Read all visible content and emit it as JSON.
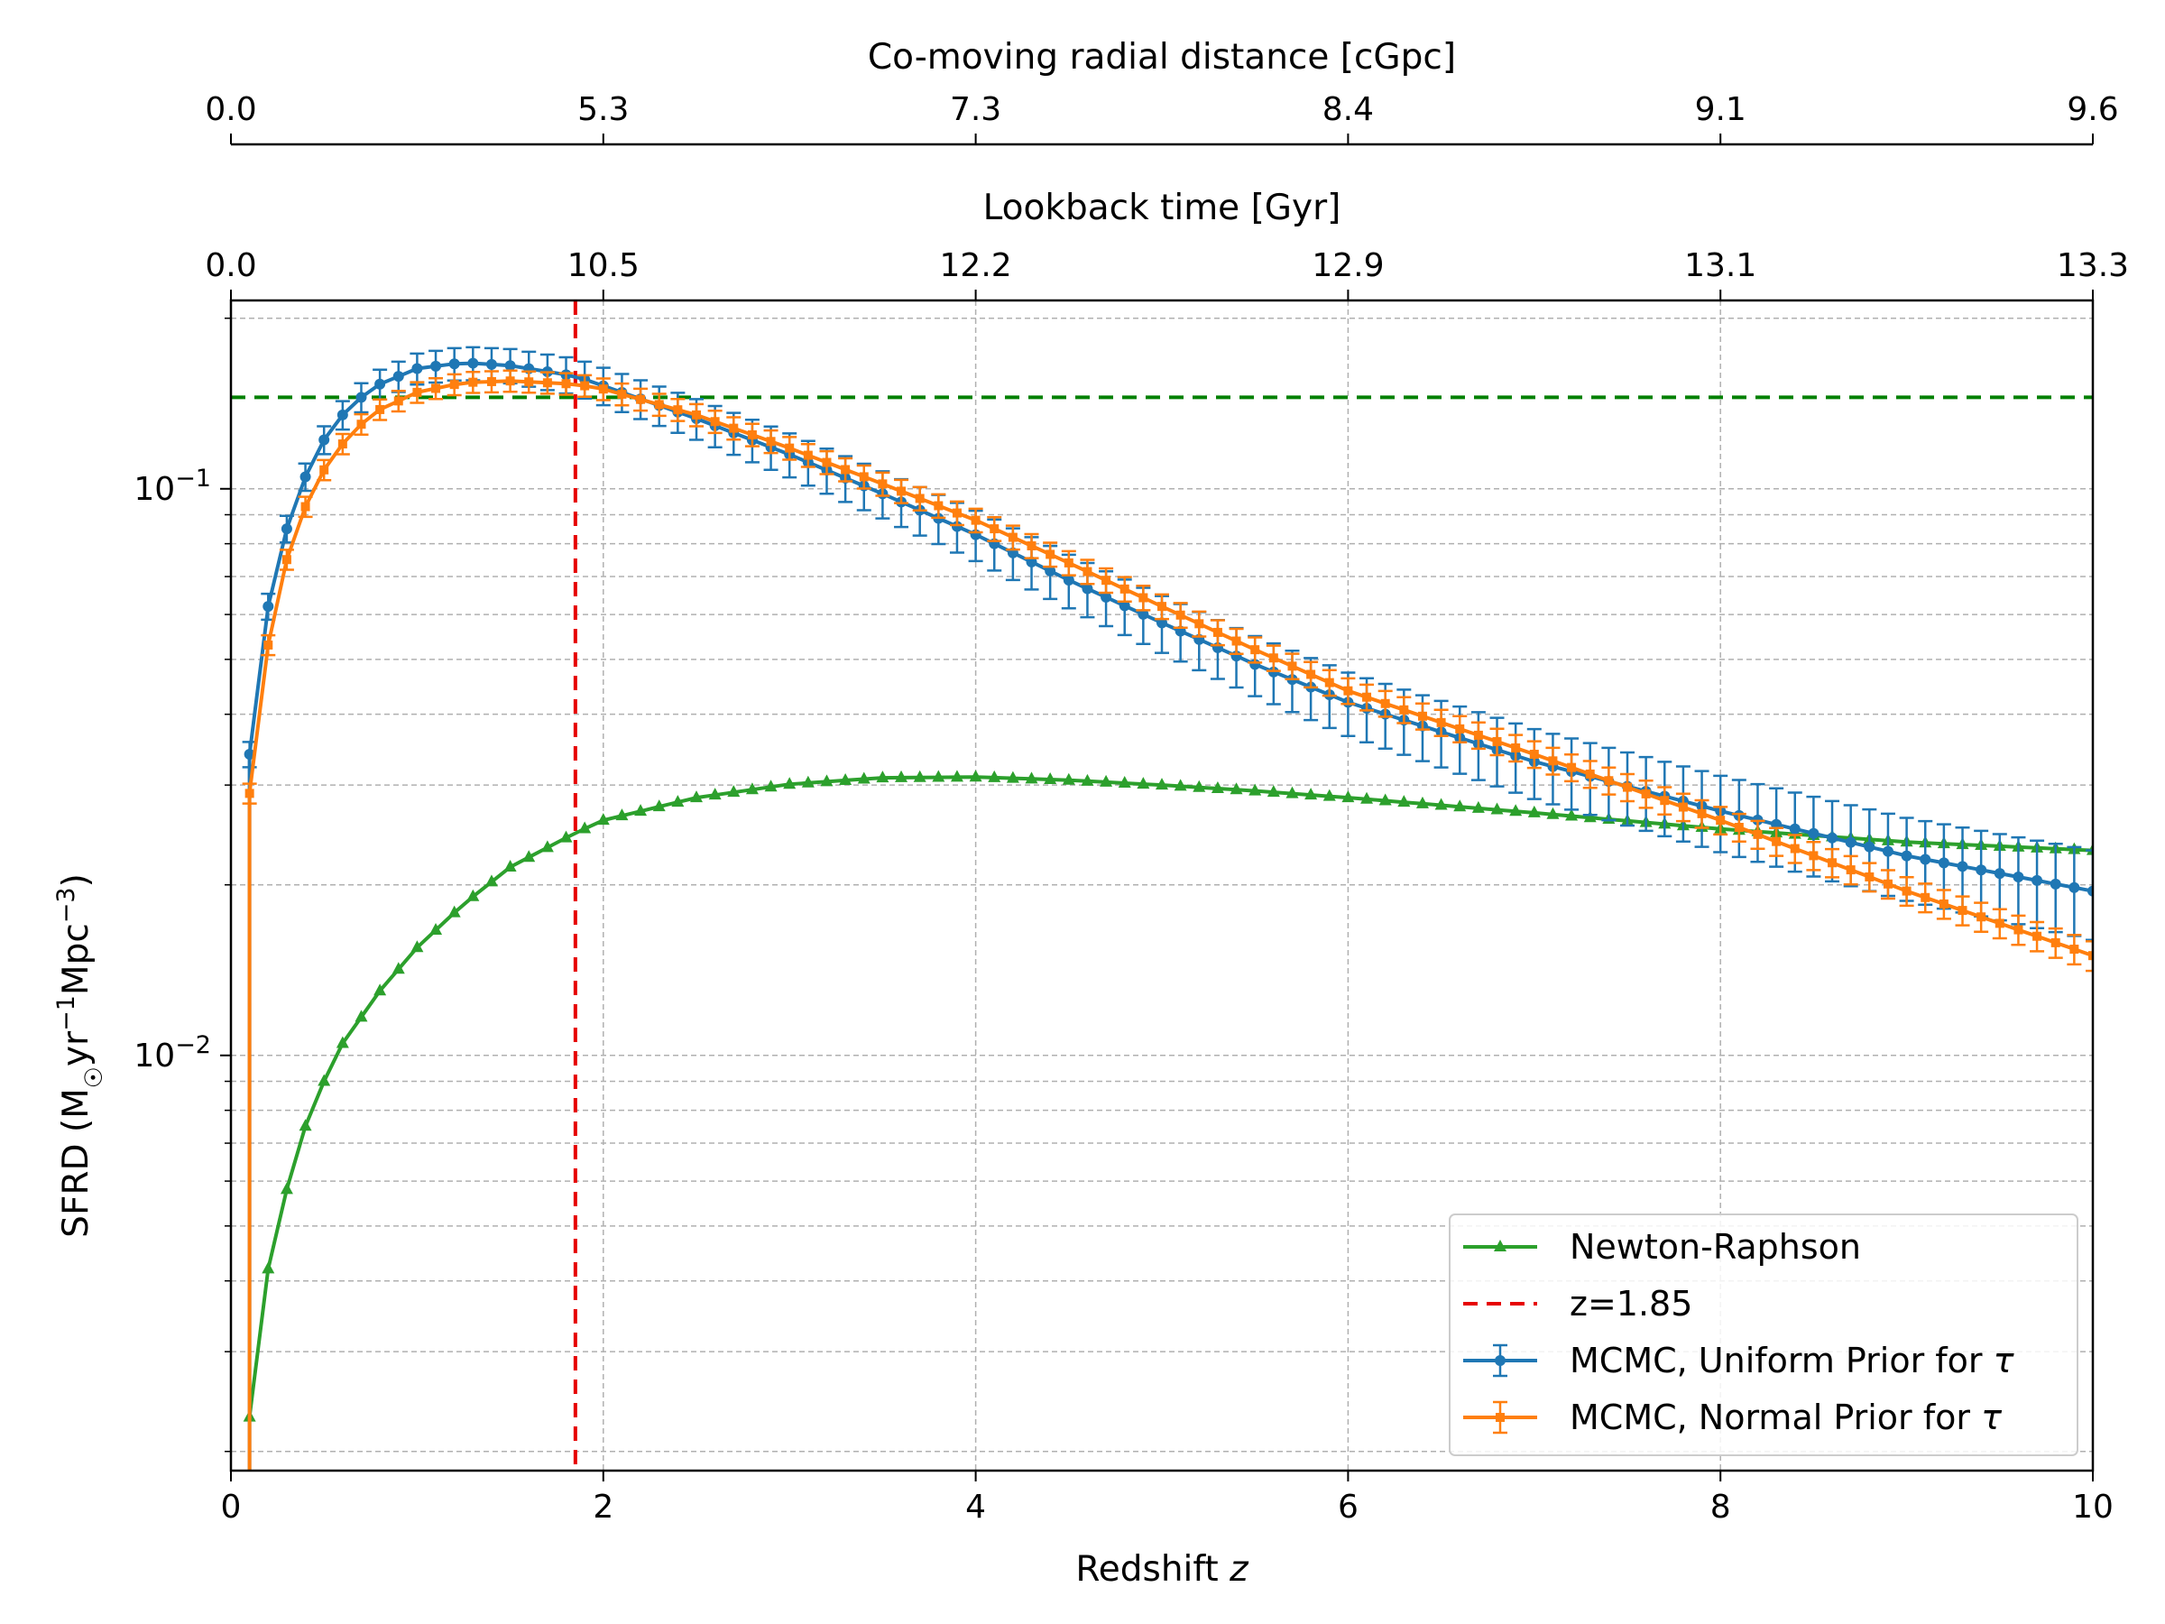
{
  "chart_data": {
    "type": "line",
    "xlabel": "Redshift z",
    "xlabel_main": "Redshift ",
    "xlabel_var": "z",
    "ylabel": "SFRD (M☉yr⁻¹Mpc⁻³)",
    "xlim": [
      0,
      10
    ],
    "ylim": [
      0.00185,
      0.215
    ],
    "yscale": "log",
    "grid": true,
    "legend_position": "lower-right",
    "x_ticks": [
      "0",
      "2",
      "4",
      "6",
      "8",
      "10"
    ],
    "y_ticks": [
      {
        "base": "10",
        "exp": "−1",
        "value": 0.1
      },
      {
        "base": "10",
        "exp": "−2",
        "value": 0.01
      }
    ],
    "top_axes": [
      {
        "label": "Lookback time [Gyr]",
        "ticks": [
          {
            "z": 0,
            "label": "0.0"
          },
          {
            "z": 2,
            "label": "10.5"
          },
          {
            "z": 4,
            "label": "12.2"
          },
          {
            "z": 6,
            "label": "12.9"
          },
          {
            "z": 8,
            "label": "13.1"
          },
          {
            "z": 10,
            "label": "13.3"
          }
        ]
      },
      {
        "label": "Co-moving radial distance [cGpc]",
        "ticks": [
          {
            "z": 0,
            "label": "0.0"
          },
          {
            "z": 2,
            "label": "5.3"
          },
          {
            "z": 4,
            "label": "7.3"
          },
          {
            "z": 6,
            "label": "8.4"
          },
          {
            "z": 8,
            "label": "9.1"
          },
          {
            "z": 10,
            "label": "9.6"
          }
        ]
      }
    ],
    "reference_lines": [
      {
        "orientation": "horizontal",
        "y": 0.145,
        "color": "#008000",
        "style": "dashed"
      },
      {
        "orientation": "vertical",
        "x": 1.85,
        "color": "#e60000",
        "style": "dashed",
        "name": "z=1.85"
      }
    ],
    "series": [
      {
        "name": "Newton-Raphson",
        "color": "#2ca02c",
        "marker": "triangle",
        "x_start": 0.1,
        "x_step": 0.1,
        "keypoints": [
          [
            0.1,
            0.0023
          ],
          [
            0.2,
            0.0042
          ],
          [
            0.3,
            0.0058
          ],
          [
            0.4,
            0.0075
          ],
          [
            0.5,
            0.009
          ],
          [
            0.6,
            0.0105
          ],
          [
            0.8,
            0.013
          ],
          [
            1.0,
            0.0155
          ],
          [
            1.25,
            0.0185
          ],
          [
            1.5,
            0.0215
          ],
          [
            1.85,
            0.0247
          ],
          [
            2.0,
            0.026
          ],
          [
            2.5,
            0.0285
          ],
          [
            3.0,
            0.0301
          ],
          [
            3.5,
            0.0309
          ],
          [
            4.0,
            0.031
          ],
          [
            4.5,
            0.0306
          ],
          [
            5.0,
            0.03
          ],
          [
            5.5,
            0.0293
          ],
          [
            6.0,
            0.0285
          ],
          [
            7.0,
            0.0268
          ],
          [
            8.0,
            0.0251
          ],
          [
            9.0,
            0.0238
          ],
          [
            10.0,
            0.023
          ]
        ]
      },
      {
        "name": "MCMC, Uniform Prior for τ",
        "color": "#1f77b4",
        "marker": "circle",
        "x_start": 0.1,
        "x_step": 0.1,
        "keypoints": [
          [
            0.1,
            0.034
          ],
          [
            0.2,
            0.062
          ],
          [
            0.3,
            0.085
          ],
          [
            0.4,
            0.105
          ],
          [
            0.5,
            0.122
          ],
          [
            0.6,
            0.135
          ],
          [
            0.7,
            0.145
          ],
          [
            0.8,
            0.153
          ],
          [
            1.0,
            0.163
          ],
          [
            1.25,
            0.167
          ],
          [
            1.5,
            0.165
          ],
          [
            1.85,
            0.158
          ],
          [
            2.0,
            0.152
          ],
          [
            2.5,
            0.133
          ],
          [
            3.0,
            0.115
          ],
          [
            3.5,
            0.098
          ],
          [
            4.0,
            0.083
          ],
          [
            4.5,
            0.069
          ],
          [
            5.0,
            0.058
          ],
          [
            5.5,
            0.049
          ],
          [
            6.0,
            0.042
          ],
          [
            7.0,
            0.033
          ],
          [
            8.0,
            0.027
          ],
          [
            9.0,
            0.0225
          ],
          [
            10.0,
            0.0195
          ]
        ],
        "err_frac_start": 0.05,
        "err_frac_end": 0.18
      },
      {
        "name": "MCMC, Normal Prior for τ",
        "color": "#ff7f0e",
        "marker": "square",
        "x_start": 0.1,
        "x_step": 0.1,
        "keypoints": [
          [
            0.1,
            0.029
          ],
          [
            0.2,
            0.053
          ],
          [
            0.3,
            0.075
          ],
          [
            0.4,
            0.093
          ],
          [
            0.5,
            0.108
          ],
          [
            0.6,
            0.12
          ],
          [
            0.7,
            0.13
          ],
          [
            0.8,
            0.138
          ],
          [
            1.0,
            0.148
          ],
          [
            1.25,
            0.154
          ],
          [
            1.5,
            0.155
          ],
          [
            1.85,
            0.153
          ],
          [
            2.0,
            0.15
          ],
          [
            2.5,
            0.135
          ],
          [
            3.0,
            0.118
          ],
          [
            3.5,
            0.102
          ],
          [
            4.0,
            0.088
          ],
          [
            4.5,
            0.074
          ],
          [
            5.0,
            0.062
          ],
          [
            5.5,
            0.052
          ],
          [
            6.0,
            0.044
          ],
          [
            7.0,
            0.034
          ],
          [
            8.0,
            0.026
          ],
          [
            9.0,
            0.0195
          ],
          [
            10.0,
            0.015
          ]
        ],
        "err_frac_start": 0.04,
        "err_frac_end": 0.06
      }
    ],
    "legend": [
      {
        "label": "Newton-Raphson",
        "color": "#2ca02c",
        "kind": "line-triangle"
      },
      {
        "label": "z=1.85",
        "color": "#e60000",
        "kind": "dashed"
      },
      {
        "label": "MCMC, Uniform Prior for τ",
        "label_main": "MCMC, Uniform Prior for ",
        "label_var": "τ",
        "color": "#1f77b4",
        "kind": "errorbar-circle"
      },
      {
        "label": "MCMC, Normal Prior for τ",
        "label_main": "MCMC, Normal Prior for ",
        "label_var": "τ",
        "color": "#ff7f0e",
        "kind": "errorbar-square"
      }
    ]
  }
}
